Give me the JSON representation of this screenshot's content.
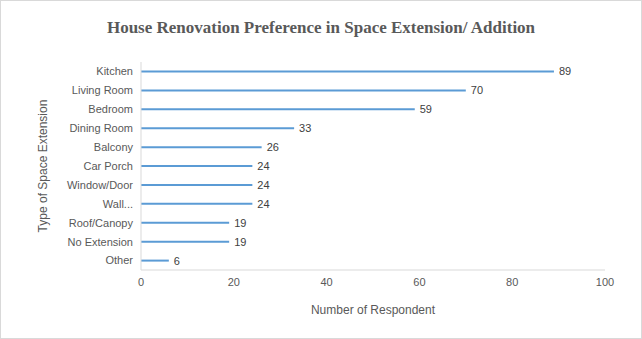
{
  "chart_data": {
    "type": "bar",
    "title": "House Renovation Preference in Space Extension/ Addition",
    "x_label": "Number of Respondent",
    "y_label": "Type of Space Extension",
    "categories": [
      "Kitchen",
      "Living Room",
      "Bedroom",
      "Dining Room",
      "Balcony",
      "Car Porch",
      "Window/Door",
      "Wall...",
      "Roof/Canopy",
      "No Extension",
      "Other"
    ],
    "values": [
      89,
      70,
      59,
      33,
      26,
      24,
      24,
      24,
      19,
      19,
      6
    ],
    "color": "#5b9bd5",
    "xlim": [
      0,
      100
    ],
    "xticks": [
      0,
      20,
      40,
      60,
      80,
      100
    ],
    "orientation": "horizontal",
    "data_labels": true,
    "grid": false
  }
}
